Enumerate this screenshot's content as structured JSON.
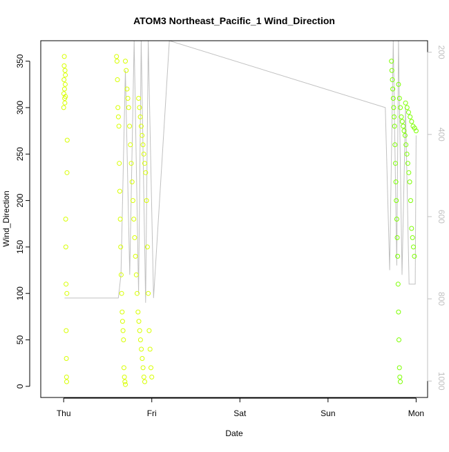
{
  "chart_data": {
    "type": "scatter",
    "title": "ATOM3 Northeast_Pacific_1 Wind_Direction",
    "xlabel": "Date",
    "ylabel": "Wind_Direction",
    "ylim": [
      -12,
      372
    ],
    "y_ticks": [
      0,
      50,
      100,
      150,
      200,
      250,
      300,
      350
    ],
    "x_ticks": [
      "Thu",
      "Fri",
      "Sat",
      "Sun",
      "Mon"
    ],
    "x_tick_days": [
      0,
      1,
      2,
      3,
      4
    ],
    "xlim_days": [
      -0.26,
      4.13
    ],
    "y2_ticks": [
      200,
      400,
      600,
      800,
      1000
    ],
    "y2lim": [
      172,
      1040
    ],
    "grid": false,
    "series": [
      {
        "color_early": "#d8ff00",
        "color_late": "#7cff00",
        "clusters": [
          {
            "day_start": 0.0,
            "day_end": 0.04,
            "values": [
              300,
              315,
              330,
              345,
              355,
              320,
              310,
              305,
              340,
              325,
              335,
              312,
              180,
              150,
              110,
              60,
              30,
              10,
              5,
              100,
              230,
              265
            ]
          },
          {
            "day_start": 0.6,
            "day_end": 0.7,
            "values": [
              355,
              350,
              330,
              300,
              290,
              280,
              240,
              210,
              180,
              150,
              120,
              100,
              80,
              70,
              60,
              50,
              20,
              10,
              5,
              2
            ]
          },
          {
            "day_start": 0.7,
            "day_end": 0.92,
            "values": [
              350,
              340,
              320,
              310,
              300,
              280,
              260,
              240,
              220,
              200,
              180,
              160,
              140,
              120,
              100,
              80,
              70,
              60,
              50,
              40,
              30,
              20,
              10,
              5
            ]
          },
          {
            "day_start": 0.85,
            "day_end": 1.0,
            "values": [
              310,
              300,
              290,
              280,
              270,
              260,
              250,
              240,
              230,
              200,
              150,
              100,
              60,
              40,
              20,
              10
            ]
          },
          {
            "day_start": 3.72,
            "day_end": 3.82,
            "values": [
              350,
              340,
              330,
              320,
              310,
              300,
              290,
              280,
              260,
              240,
              220,
              200,
              180,
              160,
              140,
              110,
              80,
              50,
              20,
              10,
              5
            ]
          },
          {
            "day_start": 3.8,
            "day_end": 3.98,
            "values": [
              325,
              310,
              300,
              290,
              285,
              280,
              275,
              270,
              260,
              250,
              240,
              230,
              220,
              200,
              170,
              160,
              150,
              140
            ]
          },
          {
            "day_start": 3.88,
            "day_end": 4.0,
            "values": [
              305,
              300,
              295,
              290,
              285,
              280,
              278,
              275
            ]
          }
        ]
      }
    ],
    "pressure_line": {
      "color": "#c0c0c0",
      "points": [
        {
          "day": 0.01,
          "value": 95
        },
        {
          "day": 0.62,
          "value": 95
        },
        {
          "day": 0.65,
          "value": 120
        },
        {
          "day": 0.7,
          "value": 340
        },
        {
          "day": 0.75,
          "value": 120
        },
        {
          "day": 0.8,
          "value": 372
        },
        {
          "day": 0.85,
          "value": 100
        },
        {
          "day": 0.88,
          "value": 372
        },
        {
          "day": 0.93,
          "value": 90
        },
        {
          "day": 0.96,
          "value": 372
        },
        {
          "day": 1.02,
          "value": 95
        },
        {
          "day": 1.2,
          "value": 372
        },
        {
          "day": 3.65,
          "value": 300
        },
        {
          "day": 3.7,
          "value": 125
        },
        {
          "day": 3.74,
          "value": 372
        },
        {
          "day": 3.78,
          "value": 130
        },
        {
          "day": 3.8,
          "value": 372
        },
        {
          "day": 3.84,
          "value": 120
        },
        {
          "day": 3.88,
          "value": 300
        },
        {
          "day": 3.92,
          "value": 110
        },
        {
          "day": 3.99,
          "value": 110
        },
        {
          "day": 4.0,
          "value": 270
        }
      ]
    }
  }
}
